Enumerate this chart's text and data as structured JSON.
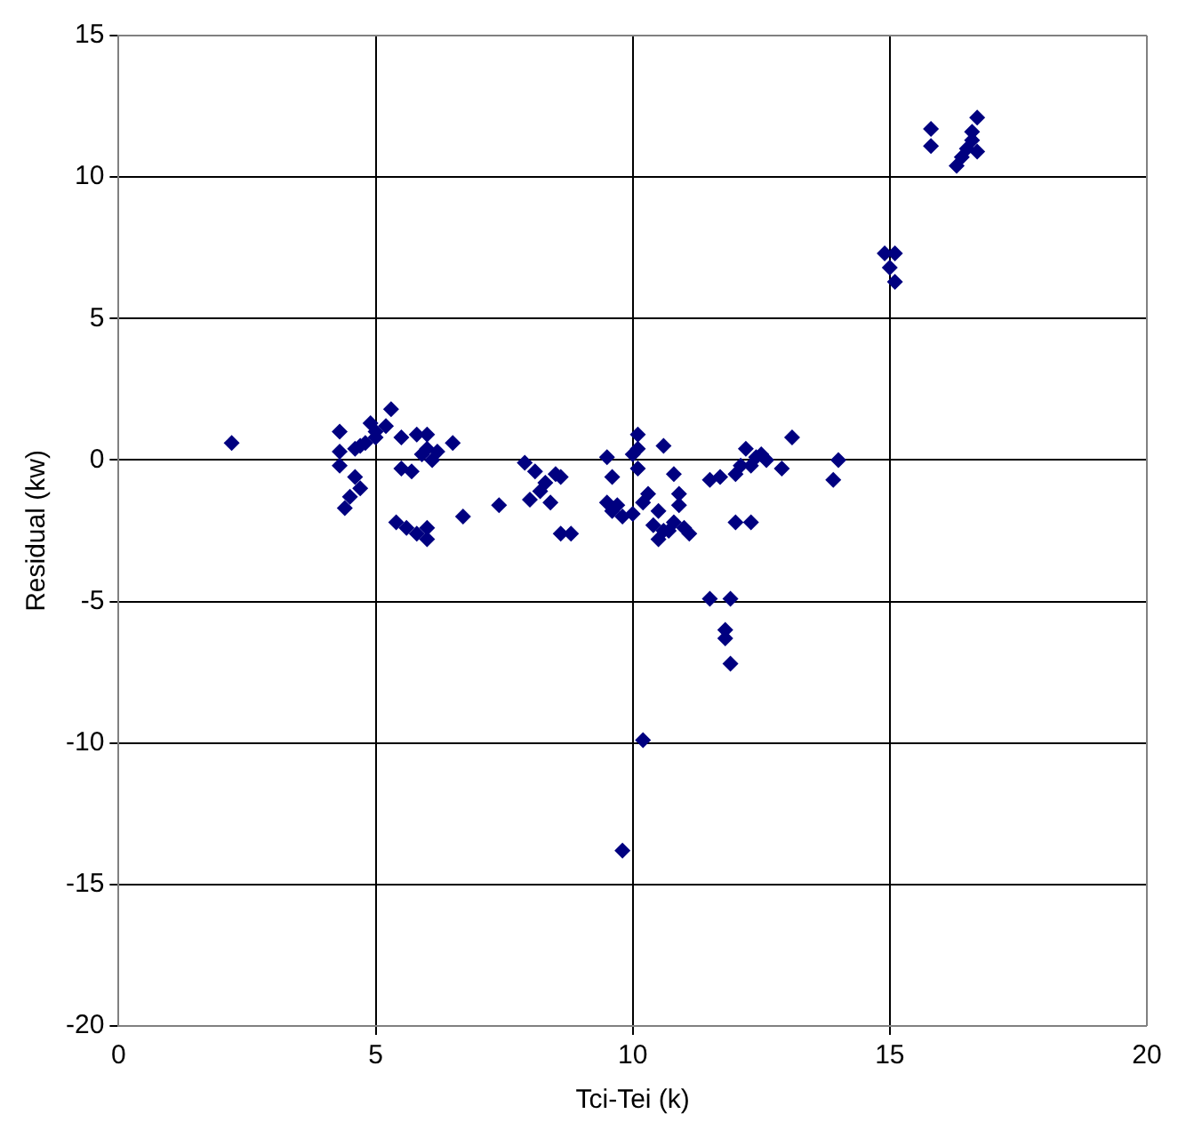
{
  "chart_data": {
    "type": "scatter",
    "xlabel": "Tci-Tei (k)",
    "ylabel": "Residual (kw)",
    "xlim": [
      0,
      20
    ],
    "xticks": [
      0,
      5,
      10,
      15,
      20
    ],
    "ylim": [
      -20,
      15
    ],
    "yticks": [
      -20,
      -15,
      -10,
      -5,
      0,
      5,
      10,
      15
    ],
    "grid": true,
    "legend": false,
    "marker": "diamond",
    "series": [
      {
        "color": "#000080",
        "x": [
          2.2,
          4.3,
          4.3,
          4.3,
          4.4,
          4.5,
          4.6,
          4.6,
          4.7,
          4.7,
          4.8,
          4.9,
          5.0,
          5.0,
          5.2,
          5.3,
          5.4,
          5.5,
          5.5,
          5.6,
          5.7,
          5.8,
          5.8,
          5.9,
          6.0,
          6.0,
          6.0,
          6.0,
          6.1,
          6.2,
          6.5,
          6.7,
          7.4,
          7.9,
          8.0,
          8.1,
          8.2,
          8.3,
          8.4,
          8.5,
          8.6,
          8.6,
          8.8,
          9.5,
          9.5,
          9.6,
          9.6,
          9.7,
          9.8,
          9.8,
          10.0,
          10.0,
          10.1,
          10.1,
          10.1,
          10.2,
          10.2,
          10.3,
          10.4,
          10.5,
          10.5,
          10.6,
          10.6,
          10.7,
          10.8,
          10.8,
          10.9,
          10.9,
          11.0,
          11.1,
          11.5,
          11.5,
          11.7,
          11.8,
          11.8,
          11.9,
          11.9,
          12.0,
          12.0,
          12.1,
          12.2,
          12.3,
          12.4,
          12.5,
          12.6,
          12.3,
          12.9,
          13.1,
          13.9,
          14.0,
          14.9,
          15.1,
          15.0,
          15.1,
          15.8,
          15.8,
          16.3,
          16.4,
          16.5,
          16.6,
          16.7,
          16.6,
          16.7
        ],
        "values": [
          0.6,
          1.0,
          0.3,
          -0.2,
          -1.7,
          -1.3,
          0.4,
          -0.6,
          -1.0,
          0.5,
          0.6,
          1.3,
          0.8,
          1.0,
          1.2,
          1.8,
          -2.2,
          -0.3,
          0.8,
          -2.4,
          -0.4,
          0.9,
          -2.6,
          0.2,
          -2.8,
          -2.4,
          0.9,
          0.4,
          0.0,
          0.3,
          0.6,
          -2.0,
          -1.6,
          -0.1,
          -1.4,
          -0.4,
          -1.1,
          -0.8,
          -1.5,
          -0.5,
          -2.6,
          -0.6,
          -2.6,
          0.1,
          -1.5,
          -0.6,
          -1.8,
          -1.6,
          -2.0,
          -13.8,
          0.2,
          -1.9,
          0.4,
          0.9,
          -0.3,
          -1.5,
          -9.9,
          -1.2,
          -2.3,
          -2.8,
          -1.8,
          -2.5,
          0.5,
          -2.5,
          -0.5,
          -2.2,
          -1.2,
          -1.6,
          -2.4,
          -2.6,
          -4.9,
          -0.7,
          -0.6,
          -6.0,
          -6.3,
          -7.2,
          -4.9,
          -0.5,
          -2.2,
          -0.2,
          0.4,
          -0.2,
          0.1,
          0.2,
          0.0,
          -2.2,
          -0.3,
          0.8,
          -0.7,
          0.0,
          7.3,
          7.3,
          6.8,
          6.3,
          11.7,
          11.1,
          10.4,
          10.7,
          11.0,
          11.3,
          12.1,
          11.6,
          10.9
        ]
      }
    ]
  }
}
